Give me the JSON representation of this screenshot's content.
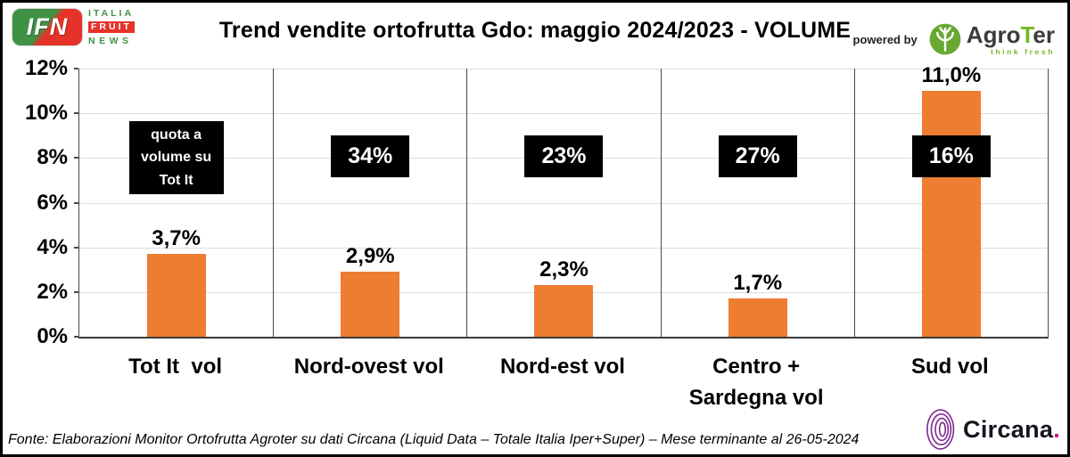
{
  "header": {
    "title": "Trend vendite ortofrutta Gdo: maggio 2024/2023 - VOLUME",
    "ifn_logo": {
      "abbr": "IFN",
      "line1": "ITALIA",
      "line2": "FRUIT",
      "line3": "NEWS"
    },
    "powered_by": "powered by",
    "agroter_pre": "Agro",
    "agroter_t": "T",
    "agroter_post": "er",
    "agroter_tagline": "think fresh"
  },
  "chart_data": {
    "type": "bar",
    "title": "Trend vendite ortofrutta Gdo: maggio 2024/2023 - VOLUME",
    "categories": [
      "Tot It  vol",
      "Nord-ovest vol",
      "Nord-est vol",
      "Centro +\nSardegna vol",
      "Sud vol"
    ],
    "values": [
      3.7,
      2.9,
      2.3,
      1.7,
      11.0
    ],
    "value_labels": [
      "3,7%",
      "2,9%",
      "2,3%",
      "1,7%",
      "11,0%"
    ],
    "quota_labels": [
      "quota a volume su Tot It",
      "34%",
      "23%",
      "27%",
      "16%"
    ],
    "yticks": [
      "0%",
      "2%",
      "4%",
      "6%",
      "8%",
      "10%",
      "12%"
    ],
    "ylim": [
      0,
      12
    ],
    "grid": true,
    "bar_color": "#ED7D31",
    "quota_box_bg": "#000000",
    "quota_box_fg": "#FFFFFF"
  },
  "footer": {
    "source": "Fonte: Elaborazioni Monitor Ortofrutta Agroter su dati Circana (Liquid Data – Totale Italia Iper+Super) – Mese terminante al 26-05-2024",
    "circana_name": "Circana",
    "circana_dot": "."
  }
}
